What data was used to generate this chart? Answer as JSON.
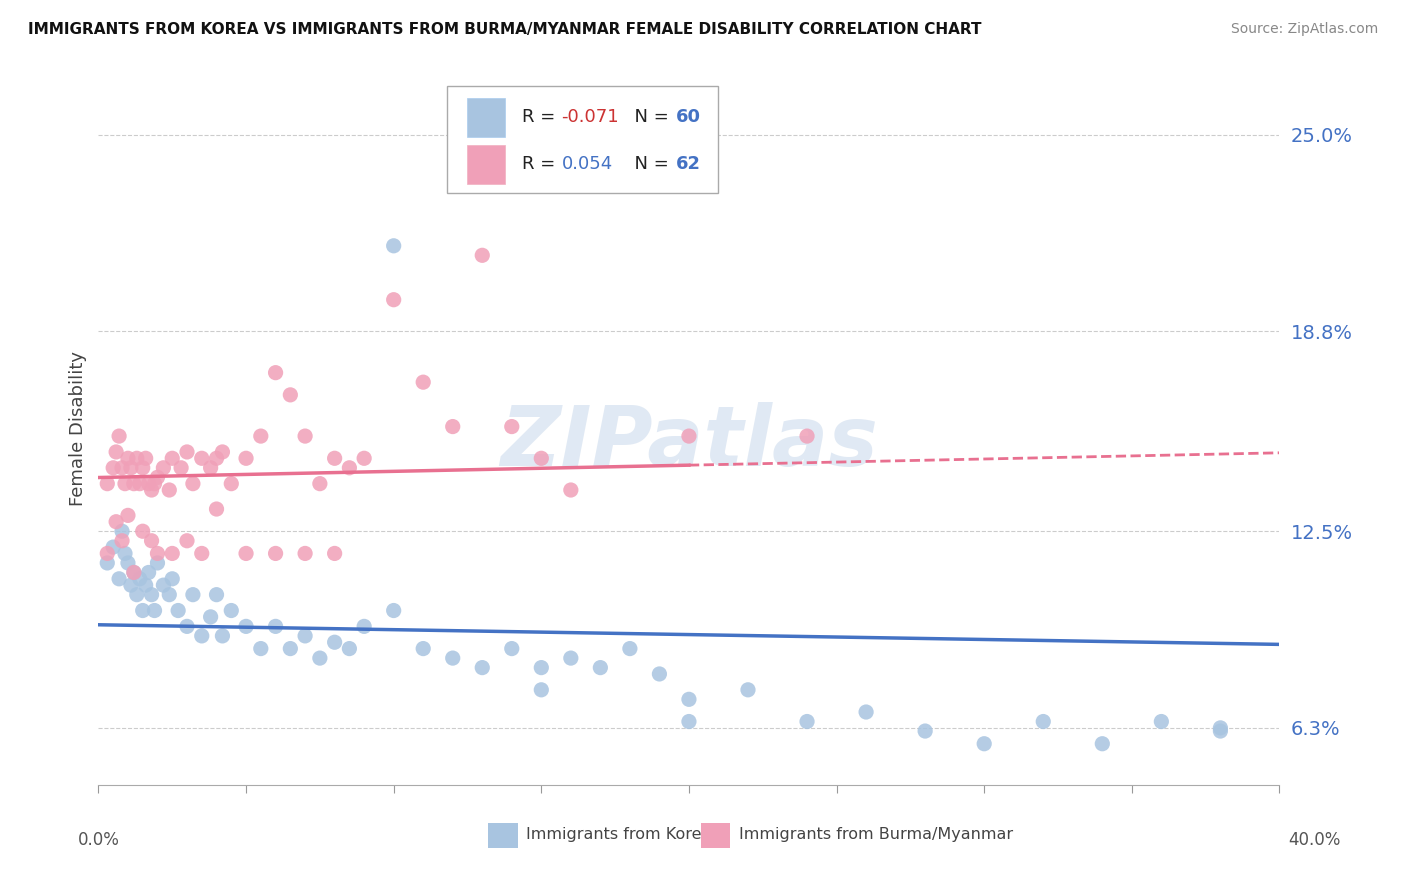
{
  "title": "IMMIGRANTS FROM KOREA VS IMMIGRANTS FROM BURMA/MYANMAR FEMALE DISABILITY CORRELATION CHART",
  "source": "Source: ZipAtlas.com",
  "ylabel": "Female Disability",
  "yticks": [
    0.063,
    0.125,
    0.188,
    0.25
  ],
  "ytick_labels": [
    "6.3%",
    "12.5%",
    "18.8%",
    "25.0%"
  ],
  "xlim": [
    0.0,
    0.4
  ],
  "ylim": [
    0.045,
    0.27
  ],
  "korea_R": -0.071,
  "korea_N": 60,
  "burma_R": 0.054,
  "burma_N": 62,
  "korea_color": "#a8c4e0",
  "burma_color": "#f0a0b8",
  "korea_line_color": "#4472c4",
  "burma_line_color": "#e87090",
  "legend_label_korea": "Immigrants from Korea",
  "legend_label_burma": "Immigrants from Burma/Myanmar",
  "watermark": "ZIPatlas",
  "korea_x": [
    0.003,
    0.005,
    0.007,
    0.008,
    0.009,
    0.01,
    0.011,
    0.012,
    0.013,
    0.014,
    0.015,
    0.016,
    0.017,
    0.018,
    0.019,
    0.02,
    0.022,
    0.024,
    0.025,
    0.027,
    0.03,
    0.032,
    0.035,
    0.038,
    0.04,
    0.042,
    0.045,
    0.05,
    0.055,
    0.06,
    0.065,
    0.07,
    0.075,
    0.08,
    0.085,
    0.09,
    0.1,
    0.11,
    0.12,
    0.13,
    0.14,
    0.15,
    0.16,
    0.17,
    0.18,
    0.19,
    0.2,
    0.22,
    0.24,
    0.26,
    0.28,
    0.3,
    0.32,
    0.34,
    0.36,
    0.38,
    0.1,
    0.15,
    0.2,
    0.38
  ],
  "korea_y": [
    0.115,
    0.12,
    0.11,
    0.125,
    0.118,
    0.115,
    0.108,
    0.112,
    0.105,
    0.11,
    0.1,
    0.108,
    0.112,
    0.105,
    0.1,
    0.115,
    0.108,
    0.105,
    0.11,
    0.1,
    0.095,
    0.105,
    0.092,
    0.098,
    0.105,
    0.092,
    0.1,
    0.095,
    0.088,
    0.095,
    0.088,
    0.092,
    0.085,
    0.09,
    0.088,
    0.095,
    0.1,
    0.088,
    0.085,
    0.082,
    0.088,
    0.082,
    0.085,
    0.082,
    0.088,
    0.08,
    0.072,
    0.075,
    0.065,
    0.068,
    0.062,
    0.058,
    0.065,
    0.058,
    0.065,
    0.062,
    0.215,
    0.075,
    0.065,
    0.063
  ],
  "burma_x": [
    0.003,
    0.005,
    0.006,
    0.007,
    0.008,
    0.009,
    0.01,
    0.011,
    0.012,
    0.013,
    0.014,
    0.015,
    0.016,
    0.017,
    0.018,
    0.019,
    0.02,
    0.022,
    0.024,
    0.025,
    0.028,
    0.03,
    0.032,
    0.035,
    0.038,
    0.04,
    0.042,
    0.045,
    0.05,
    0.055,
    0.06,
    0.065,
    0.07,
    0.075,
    0.08,
    0.085,
    0.09,
    0.1,
    0.11,
    0.12,
    0.13,
    0.14,
    0.15,
    0.16,
    0.2,
    0.24,
    0.003,
    0.006,
    0.008,
    0.01,
    0.012,
    0.015,
    0.018,
    0.02,
    0.025,
    0.03,
    0.035,
    0.04,
    0.05,
    0.06,
    0.07,
    0.08
  ],
  "burma_y": [
    0.14,
    0.145,
    0.15,
    0.155,
    0.145,
    0.14,
    0.148,
    0.145,
    0.14,
    0.148,
    0.14,
    0.145,
    0.148,
    0.14,
    0.138,
    0.14,
    0.142,
    0.145,
    0.138,
    0.148,
    0.145,
    0.15,
    0.14,
    0.148,
    0.145,
    0.148,
    0.15,
    0.14,
    0.148,
    0.155,
    0.175,
    0.168,
    0.155,
    0.14,
    0.148,
    0.145,
    0.148,
    0.198,
    0.172,
    0.158,
    0.212,
    0.158,
    0.148,
    0.138,
    0.155,
    0.155,
    0.118,
    0.128,
    0.122,
    0.13,
    0.112,
    0.125,
    0.122,
    0.118,
    0.118,
    0.122,
    0.118,
    0.132,
    0.118,
    0.118,
    0.118,
    0.118
  ]
}
